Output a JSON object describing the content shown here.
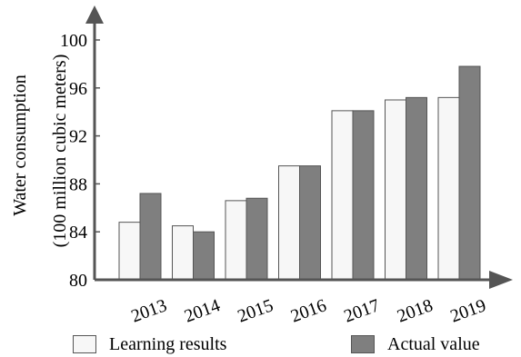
{
  "chart_data": {
    "type": "bar",
    "categories": [
      "2013",
      "2014",
      "2015",
      "2016",
      "2017",
      "2018",
      "2019"
    ],
    "series": [
      {
        "name": "Learning results",
        "values": [
          84.8,
          84.5,
          86.6,
          89.5,
          94.1,
          95.0,
          95.2
        ],
        "color": "#f7f7f7"
      },
      {
        "name": "Actual value",
        "values": [
          87.2,
          84.0,
          86.8,
          89.5,
          94.1,
          95.2,
          97.8
        ],
        "color": "#7f7f7f"
      }
    ],
    "ylabel_line1": "Water consumption",
    "ylabel_line2": "(100 million cubic meters)",
    "xlabel": "",
    "ylim": [
      80,
      100
    ],
    "yticks": [
      80,
      84,
      88,
      92,
      96,
      100
    ],
    "grid": false,
    "legend_position": "bottom"
  }
}
